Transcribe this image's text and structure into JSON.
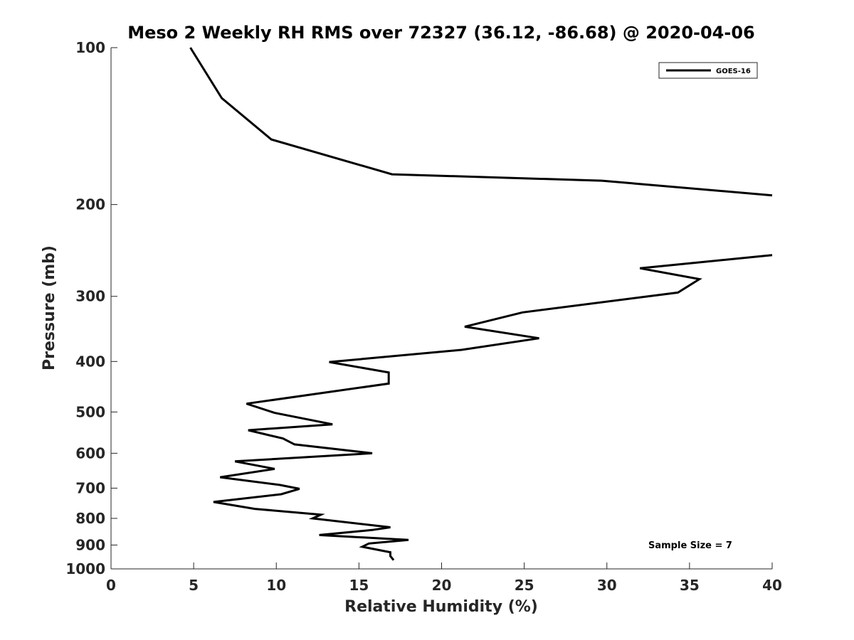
{
  "chart_data": {
    "type": "line",
    "title": "Meso 2 Weekly RH RMS over 72327 (36.12, -86.68) @ 2020-04-06",
    "xlabel": "Relative Humidity (%)",
    "ylabel": "Pressure (mb)",
    "xlim": [
      0,
      40
    ],
    "ylim": [
      100,
      1000
    ],
    "yscale": "log",
    "y_reversed": true,
    "grid": false,
    "xticks": [
      0,
      5,
      10,
      15,
      20,
      25,
      30,
      35,
      40
    ],
    "yticks": [
      100,
      200,
      300,
      400,
      500,
      600,
      700,
      800,
      900,
      1000
    ],
    "xtick_labels": [
      "0",
      "5",
      "10",
      "15",
      "20",
      "25",
      "30",
      "35",
      "40"
    ],
    "ytick_labels": [
      "100",
      "200",
      "300",
      "400",
      "500",
      "600",
      "700",
      "800",
      "900",
      "1000"
    ],
    "legend_position": "top-right",
    "annotation": "Sample Size = 7",
    "series": [
      {
        "name": "GOES-16",
        "color": "#000000",
        "segments": [
          [
            {
              "x": 4.8,
              "p": 100
            },
            {
              "x": 6.7,
              "p": 125
            },
            {
              "x": 9.7,
              "p": 150
            },
            {
              "x": 17.0,
              "p": 175
            },
            {
              "x": 29.7,
              "p": 180
            },
            {
              "x": 40.0,
              "p": 192
            }
          ],
          [
            {
              "x": 40.0,
              "p": 250
            },
            {
              "x": 32.0,
              "p": 265
            },
            {
              "x": 35.6,
              "p": 278
            },
            {
              "x": 34.3,
              "p": 295
            },
            {
              "x": 24.9,
              "p": 322
            },
            {
              "x": 21.4,
              "p": 343
            },
            {
              "x": 25.9,
              "p": 361
            },
            {
              "x": 21.2,
              "p": 380
            },
            {
              "x": 13.2,
              "p": 401
            },
            {
              "x": 16.8,
              "p": 420
            },
            {
              "x": 16.8,
              "p": 441
            },
            {
              "x": 8.2,
              "p": 482
            },
            {
              "x": 9.9,
              "p": 502
            },
            {
              "x": 13.4,
              "p": 528
            },
            {
              "x": 8.3,
              "p": 542
            },
            {
              "x": 10.4,
              "p": 562
            },
            {
              "x": 11.1,
              "p": 577
            },
            {
              "x": 15.8,
              "p": 600
            },
            {
              "x": 7.5,
              "p": 622
            },
            {
              "x": 9.9,
              "p": 643
            },
            {
              "x": 6.6,
              "p": 667
            },
            {
              "x": 10.2,
              "p": 690
            },
            {
              "x": 11.4,
              "p": 702
            },
            {
              "x": 10.3,
              "p": 719
            },
            {
              "x": 6.2,
              "p": 744
            },
            {
              "x": 8.7,
              "p": 767
            },
            {
              "x": 12.7,
              "p": 787
            },
            {
              "x": 12.2,
              "p": 800
            },
            {
              "x": 16.9,
              "p": 832
            },
            {
              "x": 15.8,
              "p": 842
            },
            {
              "x": 12.6,
              "p": 861
            },
            {
              "x": 18.0,
              "p": 880
            },
            {
              "x": 15.6,
              "p": 894
            },
            {
              "x": 15.2,
              "p": 907
            },
            {
              "x": 16.9,
              "p": 929
            },
            {
              "x": 16.9,
              "p": 945
            },
            {
              "x": 17.1,
              "p": 962
            }
          ]
        ]
      }
    ]
  }
}
